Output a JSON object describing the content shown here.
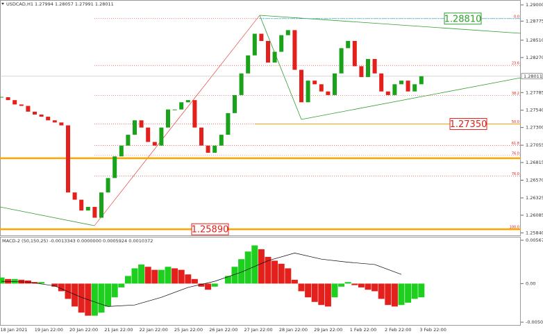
{
  "chart_data": [
    {
      "type": "candlestick",
      "title": "USDCAD,H1  1.27994 1.28057 1.27991 1.28011",
      "closes": [
        1.2772,
        1.2768,
        1.2762,
        1.276,
        1.2752,
        1.2748,
        1.2745,
        1.274,
        1.2737,
        1.2733,
        1.264,
        1.263,
        1.2615,
        1.262,
        1.2605,
        1.264,
        1.266,
        1.269,
        1.2705,
        1.272,
        1.274,
        1.273,
        1.271,
        1.2705,
        1.273,
        1.2755,
        1.2755,
        1.2765,
        1.2768,
        1.273,
        1.2705,
        1.2695,
        1.2705,
        1.272,
        1.275,
        1.2775,
        1.2805,
        1.283,
        1.286,
        1.285,
        1.282,
        1.2835,
        1.2858,
        1.2865,
        1.281,
        1.2765,
        1.2795,
        1.279,
        1.278,
        1.2775,
        1.2805,
        1.284,
        1.285,
        1.2815,
        1.28,
        1.2825,
        1.2805,
        1.278,
        1.2775,
        1.279,
        1.2795,
        1.278,
        1.279,
        1.28011
      ],
      "up_color": "#1aa31a",
      "down_color": "#e3201b",
      "ylim": [
        1.25805,
        1.29058
      ],
      "yticks": [
        {
          "value": 1.29,
          "label": "1.29000"
        },
        {
          "value": 1.28775,
          "label": "1.28775"
        },
        {
          "value": 1.2851,
          "label": "1.28510"
        },
        {
          "value": 1.2827,
          "label": "1.28270"
        },
        {
          "value": 1.27785,
          "label": "1.27785"
        },
        {
          "value": 1.2754,
          "label": "1.27540"
        },
        {
          "value": 1.273,
          "label": "1.27300"
        },
        {
          "value": 1.27055,
          "label": "1.27055"
        },
        {
          "value": 1.26815,
          "label": "1.26815"
        },
        {
          "value": 1.2657,
          "label": "1.26570"
        },
        {
          "value": 1.26325,
          "label": "1.26325"
        },
        {
          "value": 1.26085,
          "label": "1.26085"
        },
        {
          "value": 1.2584,
          "label": "1.25840"
        }
      ],
      "current_price": 1.28011,
      "fib_levels": [
        {
          "label": "0.0",
          "price": 1.2881
        },
        {
          "label": "23.6",
          "price": 1.28161
        },
        {
          "label": "38.2",
          "price": 1.27742
        },
        {
          "label": "50.0",
          "price": 1.2735
        },
        {
          "label": "61.8",
          "price": 1.2705
        },
        {
          "label": "76.0",
          "price": 1.26913
        },
        {
          "label": "76.0",
          "price": 1.2663
        },
        {
          "label": "100.0",
          "price": 1.2589
        }
      ],
      "levels": [
        {
          "value": 1.2881,
          "label": "1.28810",
          "color": "#2e9e2e"
        },
        {
          "value": 1.2735,
          "label": "1.27350",
          "color": "#e3201b"
        },
        {
          "value": 1.2589,
          "label": "1.25890",
          "color": "#e3201b"
        }
      ],
      "support_lines": [
        1.2735,
        1.26874,
        1.2589
      ],
      "support_color": "#ffa500"
    },
    {
      "type": "bar",
      "title": "MACD-2 (50,150,25) -0.0013343 0.0000000 0.0005924 0.0010372",
      "values": [
        0.0008,
        0.0006,
        0.0006,
        0.0005,
        0.0004,
        0.0002,
        0.0002,
        0.0,
        -0.0004,
        -0.001,
        -0.002,
        -0.003,
        -0.0038,
        -0.0042,
        -0.0042,
        -0.0038,
        -0.003,
        -0.0018,
        -0.0005,
        0.001,
        0.002,
        0.0025,
        0.0022,
        0.0018,
        0.0018,
        0.0022,
        0.002,
        0.0018,
        0.0012,
        0.0006,
        -0.0004,
        -0.0008,
        -0.0004,
        0.0,
        0.001,
        0.0022,
        0.0032,
        0.0042,
        0.005,
        0.0045,
        0.0035,
        0.003,
        0.0026,
        0.002,
        0.0005,
        -0.001,
        -0.0018,
        -0.0024,
        -0.0028,
        -0.003,
        -0.0018,
        -0.0004,
        0.0002,
        -0.0002,
        -0.0005,
        -0.0008,
        -0.001,
        -0.002,
        -0.0028,
        -0.003,
        -0.0028,
        -0.0025,
        -0.002,
        -0.0018
      ],
      "signal": [
        0.0003,
        0.0002,
        -0.0003,
        -0.0018,
        -0.003,
        -0.0028,
        -0.0018,
        -0.0005,
        0.0003,
        0.0015,
        0.003,
        0.004,
        0.0032,
        0.0028,
        0.0025,
        0.0012
      ],
      "up_color": "#1fcf1f",
      "down_color": "#e3201b",
      "signal_color": "#000000",
      "ylim": [
        -0.0050548,
        0.0056747
      ],
      "yticks": [
        0.0056747,
        {
          "value": 0,
          "label": "0.00"
        },
        -0.0050548
      ],
      "x_labels": [
        "18 Jan 2021",
        "19 Jan 22:00",
        "20 Jan 22:00",
        "21 Jan 22:00",
        "22 Jan 22:00",
        "25 Jan 22:00",
        "26 Jan 22:00",
        "27 Jan 22:00",
        "28 Jan 22:00",
        "29 Jan 22:00",
        "1 Feb 22:00",
        "2 Feb 22:00",
        "3 Feb 22:00"
      ]
    }
  ]
}
